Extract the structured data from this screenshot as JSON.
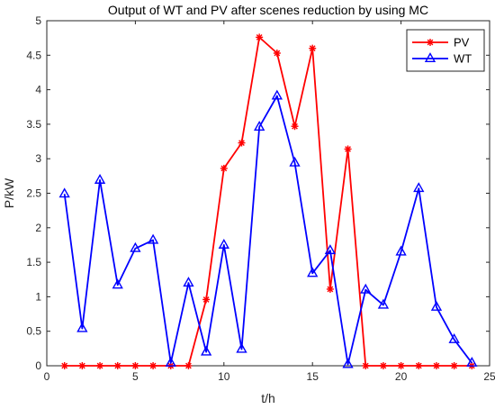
{
  "chart_data": {
    "type": "line",
    "title": "Output of WT and PV after scenes reduction by using MC",
    "xlabel": "t/h",
    "ylabel": "P/kW",
    "xlim": [
      0,
      25
    ],
    "ylim": [
      0,
      5
    ],
    "xticks": [
      0,
      5,
      10,
      15,
      20,
      25
    ],
    "yticks": [
      0,
      0.5,
      1,
      1.5,
      2,
      2.5,
      3,
      3.5,
      4,
      4.5,
      5
    ],
    "xtick_labels": [
      "0",
      "5",
      "10",
      "15",
      "20",
      "25"
    ],
    "ytick_labels": [
      "0",
      "0.5",
      "1",
      "1.5",
      "2",
      "2.5",
      "3",
      "3.5",
      "4",
      "4.5",
      "5"
    ],
    "grid": false,
    "legend_position": "top-right",
    "x": [
      1,
      2,
      3,
      4,
      5,
      6,
      7,
      8,
      9,
      10,
      11,
      12,
      13,
      14,
      15,
      16,
      17,
      18,
      19,
      20,
      21,
      22,
      23,
      24
    ],
    "series": [
      {
        "name": "PV",
        "color": "#ff0000",
        "marker": "asterisk",
        "values": [
          0,
          0,
          0,
          0,
          0,
          0,
          0,
          0,
          0.96,
          2.86,
          3.23,
          4.76,
          4.53,
          3.47,
          4.6,
          1.11,
          3.14,
          0,
          0,
          0,
          0,
          0,
          0,
          0
        ]
      },
      {
        "name": "WT",
        "color": "#0000ff",
        "marker": "triangle",
        "values": [
          2.49,
          0.54,
          2.69,
          1.17,
          1.7,
          1.82,
          0.04,
          1.2,
          0.2,
          1.75,
          0.24,
          3.46,
          3.91,
          2.94,
          1.34,
          1.67,
          0.02,
          1.1,
          0.88,
          1.65,
          2.57,
          0.85,
          0.38,
          0.04
        ]
      }
    ]
  }
}
